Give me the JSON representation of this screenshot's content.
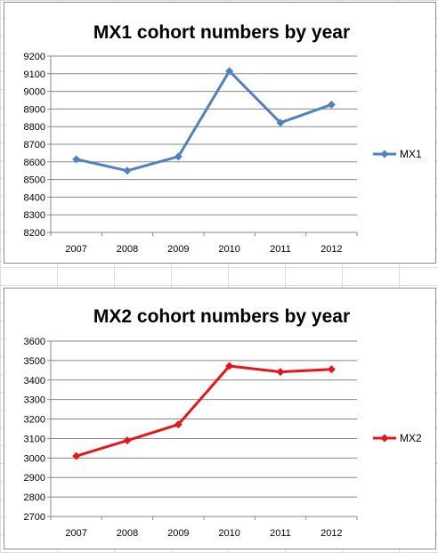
{
  "chart_data": [
    {
      "type": "line",
      "title": "MX1 cohort numbers by year",
      "categories": [
        "2007",
        "2008",
        "2009",
        "2010",
        "2011",
        "2012"
      ],
      "series": [
        {
          "name": "MX1",
          "values": [
            8615,
            8550,
            8630,
            9115,
            8822,
            8925
          ],
          "color": "#4f81bd"
        }
      ],
      "ylim": [
        8200,
        9200
      ],
      "yticks": [
        "8200",
        "8300",
        "8400",
        "8500",
        "8600",
        "8700",
        "8800",
        "8900",
        "9000",
        "9100",
        "9200"
      ],
      "grid": true,
      "legend": "right"
    },
    {
      "type": "line",
      "title": "MX2 cohort numbers by year",
      "categories": [
        "2007",
        "2008",
        "2009",
        "2010",
        "2011",
        "2012"
      ],
      "series": [
        {
          "name": "MX2",
          "values": [
            3010,
            3090,
            3172,
            3472,
            3442,
            3455
          ],
          "color": "#e8141b"
        }
      ],
      "ylim": [
        2700,
        3600
      ],
      "yticks": [
        "2700",
        "2800",
        "2900",
        "3000",
        "3100",
        "3200",
        "3300",
        "3400",
        "3500",
        "3600"
      ],
      "grid": true,
      "legend": "right"
    }
  ]
}
